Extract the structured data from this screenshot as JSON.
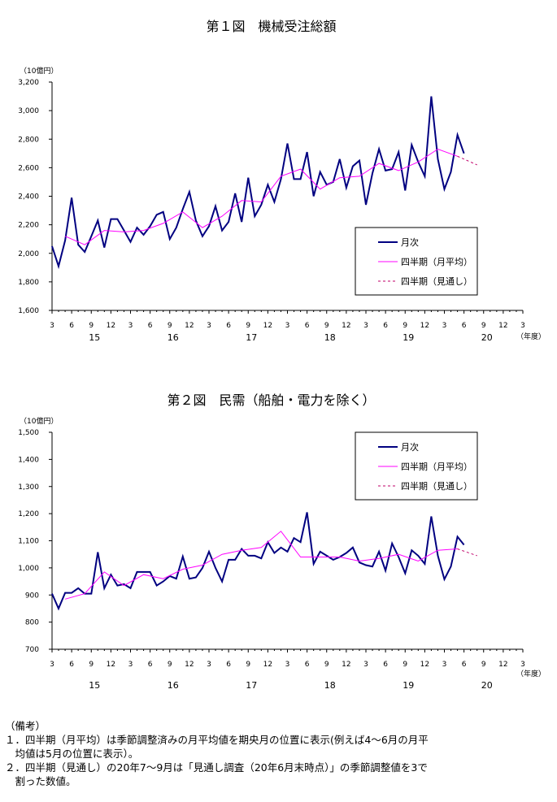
{
  "chart_data": [
    {
      "type": "line",
      "title": "第１図　機械受注総額",
      "unit_label": "（10億円）",
      "year_axis_label": "（年度）",
      "ylim": [
        1600,
        3200
      ],
      "yticks": [
        "1,600",
        "1,800",
        "2,000",
        "2,200",
        "2,400",
        "2,600",
        "2,800",
        "3,000",
        "3,200"
      ],
      "month_ticks": [
        "3",
        "6",
        "9",
        "12",
        "3",
        "6",
        "9",
        "12",
        "3",
        "6",
        "9",
        "12",
        "3",
        "6",
        "9",
        "12",
        "3",
        "6",
        "9",
        "12",
        "3",
        "6",
        "9",
        "12",
        "3"
      ],
      "year_labels": [
        "15",
        "16",
        "17",
        "18",
        "19",
        "20"
      ],
      "legend": [
        "月次",
        "四半期（月平均）",
        "四半期（見通し）"
      ],
      "series": [
        {
          "name": "月次",
          "color": "#000080",
          "x_start": "2015-03",
          "values": [
            2050,
            1910,
            2090,
            2390,
            2060,
            2010,
            2120,
            2230,
            2040,
            2240,
            2240,
            2160,
            2080,
            2180,
            2130,
            2190,
            2270,
            2290,
            2100,
            2180,
            2310,
            2430,
            2230,
            2120,
            2190,
            2330,
            2160,
            2220,
            2420,
            2220,
            2530,
            2260,
            2340,
            2480,
            2360,
            2520,
            2770,
            2520,
            2520,
            2710,
            2400,
            2570,
            2480,
            2500,
            2660,
            2460,
            2610,
            2650,
            2340,
            2560,
            2730,
            2580,
            2590,
            2710,
            2440,
            2760,
            2640,
            2540,
            3100,
            2660,
            2450,
            2570,
            2830,
            2700
          ]
        },
        {
          "name": "四半期（月平均）",
          "color": "#ff00ff",
          "x_start": "2015-05",
          "step_months": 3,
          "values": [
            2120,
            2060,
            2160,
            2150,
            2160,
            2210,
            2290,
            2180,
            2260,
            2370,
            2360,
            2540,
            2590,
            2450,
            2530,
            2540,
            2630,
            2580,
            2640,
            2730,
            2680
          ]
        },
        {
          "name": "四半期（見通し）",
          "color": "#c0006a",
          "x_start": "2020-05",
          "step_months": 3,
          "values": [
            2680,
            2620
          ]
        }
      ]
    },
    {
      "type": "line",
      "title": "第２図　民需（船舶・電力を除く）",
      "unit_label": "（10億円）",
      "year_axis_label": "（年度）",
      "ylim": [
        700,
        1500
      ],
      "yticks": [
        "700",
        "800",
        "900",
        "1,000",
        "1,100",
        "1,200",
        "1,300",
        "1,400",
        "1,500"
      ],
      "month_ticks": [
        "3",
        "6",
        "9",
        "12",
        "3",
        "6",
        "9",
        "12",
        "3",
        "6",
        "9",
        "12",
        "3",
        "6",
        "9",
        "12",
        "3",
        "6",
        "9",
        "12",
        "3",
        "6",
        "9",
        "12",
        "3"
      ],
      "year_labels": [
        "15",
        "16",
        "17",
        "18",
        "19",
        "20"
      ],
      "legend": [
        "月次",
        "四半期（月平均）",
        "四半期（見通し）"
      ],
      "series": [
        {
          "name": "月次",
          "color": "#000080",
          "x_start": "2015-03",
          "values": [
            905,
            850,
            908,
            908,
            925,
            905,
            905,
            1058,
            925,
            975,
            935,
            940,
            925,
            985,
            985,
            985,
            935,
            950,
            970,
            960,
            1042,
            960,
            965,
            1000,
            1060,
            1000,
            950,
            1030,
            1030,
            1070,
            1045,
            1045,
            1035,
            1095,
            1055,
            1075,
            1060,
            1110,
            1095,
            1205,
            1015,
            1060,
            1045,
            1030,
            1040,
            1055,
            1075,
            1020,
            1010,
            1005,
            1060,
            990,
            1090,
            1040,
            980,
            1065,
            1045,
            1015,
            1190,
            1045,
            958,
            1005,
            1115,
            1085
          ]
        },
        {
          "name": "四半期（月平均）",
          "color": "#ff00ff",
          "x_start": "2015-05",
          "step_months": 3,
          "values": [
            885,
            905,
            985,
            935,
            975,
            960,
            995,
            1010,
            1050,
            1065,
            1075,
            1135,
            1040,
            1040,
            1040,
            1025,
            1035,
            1050,
            1025,
            1065,
            1070
          ]
        },
        {
          "name": "四半期（見通し）",
          "color": "#c0006a",
          "x_start": "2020-05",
          "step_months": 3,
          "values": [
            1070,
            1045
          ]
        }
      ]
    }
  ],
  "notes": {
    "heading": "（備考）",
    "items": [
      "１．四半期（月平均）は季節調整済みの月平均値を期央月の位置に表示(例えば4～6月の月平",
      "　均値は5月の位置に表示）。",
      "２．四半期（見通し）の20年7～9月は「見通し調査（20年6月末時点）」の季節調整値を3で",
      "　割った数値。"
    ]
  }
}
